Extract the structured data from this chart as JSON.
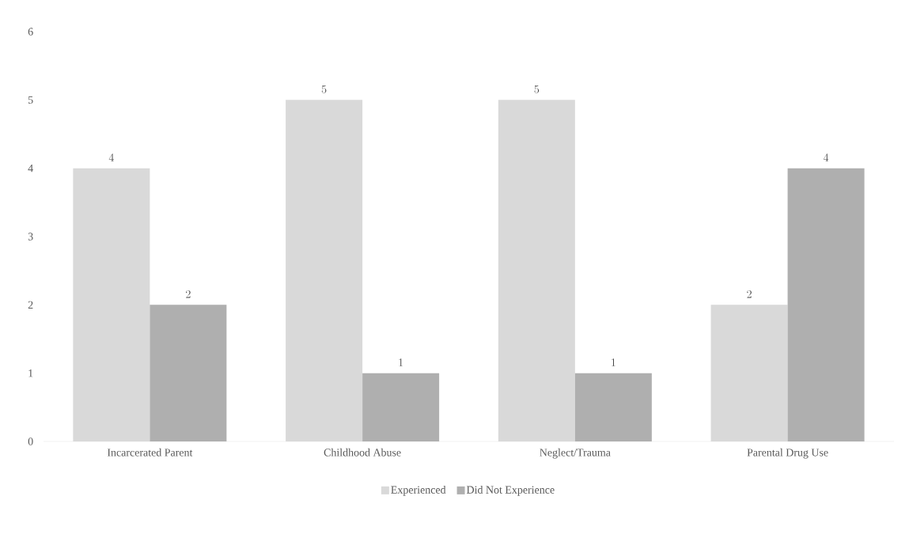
{
  "chart_data": {
    "type": "bar",
    "categories": [
      "Incarcerated Parent",
      "Childhood Abuse",
      "Neglect/Trauma",
      "Parental Drug Use"
    ],
    "series": [
      {
        "name": "Experienced",
        "color": "#d9d9d9",
        "values": [
          4,
          5,
          5,
          2
        ]
      },
      {
        "name": "Did Not Experience",
        "color": "#afafaf",
        "values": [
          2,
          1,
          1,
          4
        ]
      }
    ],
    "ylim": [
      0,
      6
    ],
    "yticks": [
      0,
      1,
      2,
      3,
      4,
      5,
      6
    ],
    "grid": false,
    "legend": "bottom",
    "data_labels": true
  }
}
